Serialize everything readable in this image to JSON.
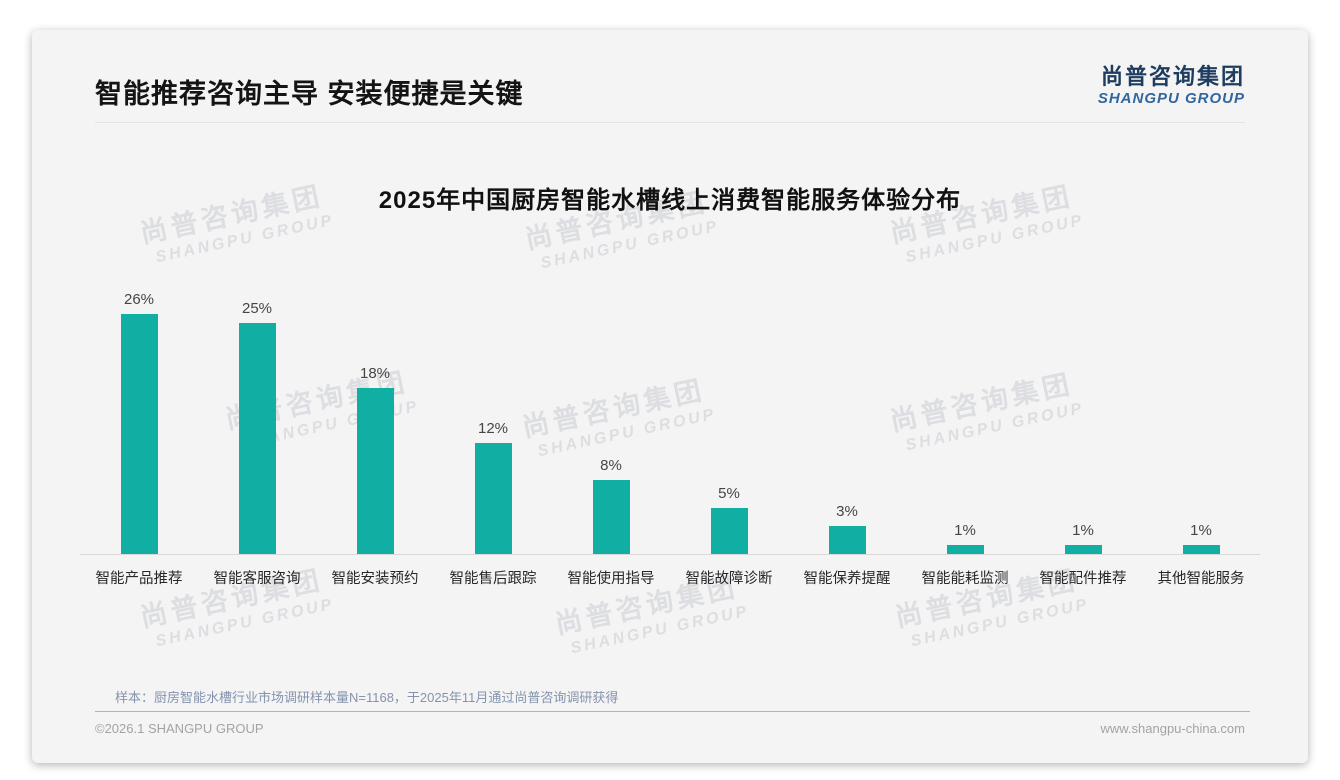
{
  "header": {
    "title": "智能推荐咨询主导 安装便捷是关键",
    "logo_cn": "尚普咨询集团",
    "logo_en": "SHANGPU GROUP"
  },
  "chart_data": {
    "type": "bar",
    "title": "2025年中国厨房智能水槽线上消费智能服务体验分布",
    "categories": [
      "智能产品推荐",
      "智能客服咨询",
      "智能安装预约",
      "智能售后跟踪",
      "智能使用指导",
      "智能故障诊断",
      "智能保养提醒",
      "智能能耗监测",
      "智能配件推荐",
      "其他智能服务"
    ],
    "values": [
      26,
      25,
      18,
      12,
      8,
      5,
      3,
      1,
      1,
      1
    ],
    "unit": "%",
    "bar_color": "#10aea3",
    "xlabel": "",
    "ylabel": "",
    "ylim": [
      0,
      26
    ],
    "grid": false,
    "legend_position": "none",
    "value_labels_shown": true
  },
  "watermark": {
    "line1": "尚普咨询集团",
    "line2": "SHANGPU GROUP"
  },
  "note": {
    "text": "样本：厨房智能水槽行业市场调研样本量N=1168，于2025年11月通过尚普咨询调研获得"
  },
  "footer": {
    "copyright": "©2026.1 SHANGPU GROUP",
    "website": "www.shangpu-china.com"
  }
}
